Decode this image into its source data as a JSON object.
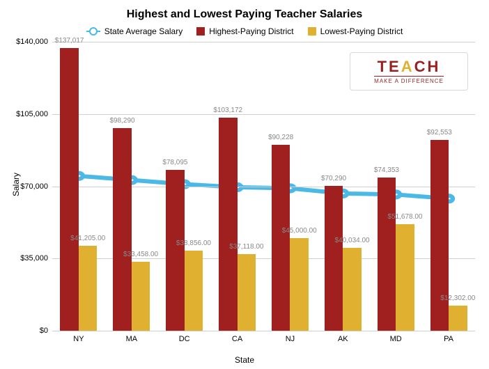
{
  "chart": {
    "type": "bar+line",
    "title": "Highest and Lowest Paying Teacher Salaries",
    "ylabel": "Salary",
    "xlabel": "State",
    "categories": [
      "NY",
      "MA",
      "DC",
      "CA",
      "NJ",
      "AK",
      "MD",
      "PA"
    ],
    "ylim": [
      0,
      140000
    ],
    "yticks": [
      0,
      35000,
      70000,
      105000,
      140000
    ],
    "ytick_labels": [
      "$0",
      "$35,000",
      "$70,000",
      "$105,000",
      "$140,000"
    ],
    "grid_color": "#d0d0d0",
    "background_color": "#ffffff",
    "font_family": "Arial",
    "title_fontsize": 16,
    "label_fontsize": 12,
    "tick_fontsize": 11,
    "barlabel_fontsize": 10,
    "barlabel_color": "#888888",
    "series": {
      "state_avg": {
        "label": "State Average Salary",
        "type": "line",
        "color": "#4bb9e6",
        "marker": "circle-open",
        "line_width": 3,
        "marker_size": 10,
        "values": [
          75000,
          73000,
          71000,
          69500,
          69000,
          66500,
          66000,
          64000
        ]
      },
      "highest": {
        "label": "Highest-Paying District",
        "type": "bar",
        "color": "#a01f1f",
        "values": [
          137017,
          98290,
          78095,
          103172,
          90228,
          70290,
          74353,
          92553
        ],
        "value_labels": [
          "$137,017",
          "$98,290",
          "$78,095",
          "$103,172",
          "$90,228",
          "$70,290",
          "$74,353",
          "$92,553"
        ]
      },
      "lowest": {
        "label": "Lowest-Paying District",
        "type": "bar",
        "color": "#e0b030",
        "values": [
          41205,
          33458,
          38856,
          37118,
          45000,
          40034,
          51678,
          12302
        ],
        "value_labels": [
          "$41,205.00",
          "$33,458.00",
          "$38,856.00",
          "$37,118.00",
          "$45,000.00",
          "$40,034.00",
          "$51,678.00",
          "$12,302.00"
        ]
      }
    },
    "bar_group_width": 0.7,
    "legend": {
      "items": [
        "state_avg",
        "highest",
        "lowest"
      ]
    },
    "logo": {
      "text_pre": "TE",
      "text_a": "A",
      "text_post": "CH",
      "subtitle": "MAKE A DIFFERENCE"
    }
  }
}
